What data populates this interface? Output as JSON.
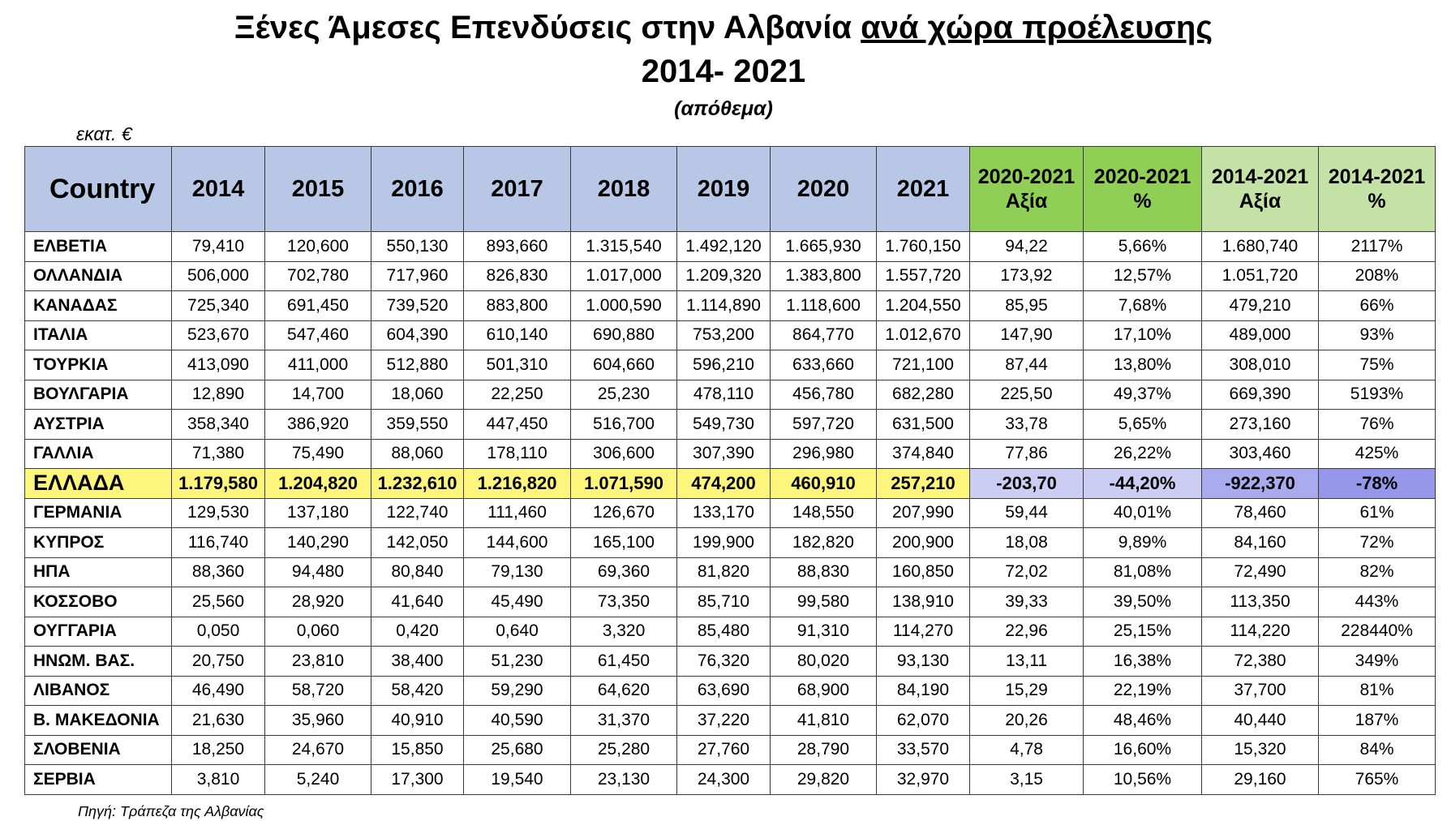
{
  "title": {
    "line1_pre": "Ξένες Άμεσες Επενδύσεις στην Αλβανία ",
    "line1_underlined": "ανά χώρα προέλευσης",
    "line2": "2014- 2021",
    "line3": "(απόθεμα)"
  },
  "unit": "εκατ. €",
  "source": "Πηγή: Τράπεζα της Αλβανίας",
  "table": {
    "headers": [
      "Country",
      "2014",
      "2015",
      "2016",
      "2017",
      "2018",
      "2019",
      "2020",
      "2021"
    ],
    "headers_green": [
      {
        "line1": "2020-2021",
        "line2": "Αξία"
      },
      {
        "line1": "2020-2021",
        "line2": "%"
      },
      {
        "line1": "2014-2021",
        "line2": "Αξία"
      },
      {
        "line1": "2014-2021",
        "line2": "%"
      }
    ],
    "rows": [
      [
        "ΕΛΒΕΤΙΑ",
        "79,410",
        "120,600",
        "550,130",
        "893,660",
        "1.315,540",
        "1.492,120",
        "1.665,930",
        "1.760,150",
        "94,22",
        "5,66%",
        "1.680,740",
        "2117%"
      ],
      [
        "ΟΛΛΑΝΔΙΑ",
        "506,000",
        "702,780",
        "717,960",
        "826,830",
        "1.017,000",
        "1.209,320",
        "1.383,800",
        "1.557,720",
        "173,92",
        "12,57%",
        "1.051,720",
        "208%"
      ],
      [
        "ΚΑΝΑΔΑΣ",
        "725,340",
        "691,450",
        "739,520",
        "883,800",
        "1.000,590",
        "1.114,890",
        "1.118,600",
        "1.204,550",
        "85,95",
        "7,68%",
        "479,210",
        "66%"
      ],
      [
        "ΙΤΑΛΙΑ",
        "523,670",
        "547,460",
        "604,390",
        "610,140",
        "690,880",
        "753,200",
        "864,770",
        "1.012,670",
        "147,90",
        "17,10%",
        "489,000",
        "93%"
      ],
      [
        "ΤΟΥΡΚΙΑ",
        "413,090",
        "411,000",
        "512,880",
        "501,310",
        "604,660",
        "596,210",
        "633,660",
        "721,100",
        "87,44",
        "13,80%",
        "308,010",
        "75%"
      ],
      [
        "ΒΟΥΛΓΑΡΙΑ",
        "12,890",
        "14,700",
        "18,060",
        "22,250",
        "25,230",
        "478,110",
        "456,780",
        "682,280",
        "225,50",
        "49,37%",
        "669,390",
        "5193%"
      ],
      [
        "ΑΥΣΤΡΙΑ",
        "358,340",
        "386,920",
        "359,550",
        "447,450",
        "516,700",
        "549,730",
        "597,720",
        "631,500",
        "33,78",
        "5,65%",
        "273,160",
        "76%"
      ],
      [
        "ΓΑΛΛΙΑ",
        "71,380",
        "75,490",
        "88,060",
        "178,110",
        "306,600",
        "307,390",
        "296,980",
        "374,840",
        "77,86",
        "26,22%",
        "303,460",
        "425%"
      ],
      [
        "ΕΛΛΑΔΑ",
        "1.179,580",
        "1.204,820",
        "1.232,610",
        "1.216,820",
        "1.071,590",
        "474,200",
        "460,910",
        "257,210",
        "-203,70",
        "-44,20%",
        "-922,370",
        "-78%"
      ],
      [
        "ΓΕΡΜΑΝΙΑ",
        "129,530",
        "137,180",
        "122,740",
        "111,460",
        "126,670",
        "133,170",
        "148,550",
        "207,990",
        "59,44",
        "40,01%",
        "78,460",
        "61%"
      ],
      [
        "ΚΥΠΡΟΣ",
        "116,740",
        "140,290",
        "142,050",
        "144,600",
        "165,100",
        "199,900",
        "182,820",
        "200,900",
        "18,08",
        "9,89%",
        "84,160",
        "72%"
      ],
      [
        "ΗΠΑ",
        "88,360",
        "94,480",
        "80,840",
        "79,130",
        "69,360",
        "81,820",
        "88,830",
        "160,850",
        "72,02",
        "81,08%",
        "72,490",
        "82%"
      ],
      [
        "ΚΟΣΣΟΒΟ",
        "25,560",
        "28,920",
        "41,640",
        "45,490",
        "73,350",
        "85,710",
        "99,580",
        "138,910",
        "39,33",
        "39,50%",
        "113,350",
        "443%"
      ],
      [
        "ΟΥΓΓΑΡΙΑ",
        "0,050",
        "0,060",
        "0,420",
        "0,640",
        "3,320",
        "85,480",
        "91,310",
        "114,270",
        "22,96",
        "25,15%",
        "114,220",
        "228440%"
      ],
      [
        "ΗΝΩΜ. ΒΑΣ.",
        "20,750",
        "23,810",
        "38,400",
        "51,230",
        "61,450",
        "76,320",
        "80,020",
        "93,130",
        "13,11",
        "16,38%",
        "72,380",
        "349%"
      ],
      [
        "ΛΙΒΑΝΟΣ",
        "46,490",
        "58,720",
        "58,420",
        "59,290",
        "64,620",
        "63,690",
        "68,900",
        "84,190",
        "15,29",
        "22,19%",
        "37,700",
        "81%"
      ],
      [
        "Β. ΜΑΚΕΔΟΝΙΑ",
        "21,630",
        "35,960",
        "40,910",
        "40,590",
        "31,370",
        "37,220",
        "41,810",
        "62,070",
        "20,26",
        "48,46%",
        "40,440",
        "187%"
      ],
      [
        "ΣΛΟΒΕΝΙΑ",
        "18,250",
        "24,670",
        "15,850",
        "25,680",
        "25,280",
        "27,760",
        "28,790",
        "33,570",
        "4,78",
        "16,60%",
        "15,320",
        "84%"
      ],
      [
        "ΣΕΡΒΙΑ",
        "3,810",
        "5,240",
        "17,300",
        "19,540",
        "23,130",
        "24,300",
        "29,820",
        "32,970",
        "3,15",
        "10,56%",
        "29,160",
        "765%"
      ]
    ],
    "highlight_row": "ΕΛΛΑΔΑ",
    "colors": {
      "header_blue": "#b8c7e6",
      "header_green_dark": "#8fcf55",
      "header_green_light": "#c4e2a6",
      "highlight_yellow": "#fdf57c",
      "highlight_purple_light": "#cdcdf3",
      "highlight_purple_mid": "#aaaaee",
      "highlight_purple_dark": "#9696ea"
    }
  }
}
